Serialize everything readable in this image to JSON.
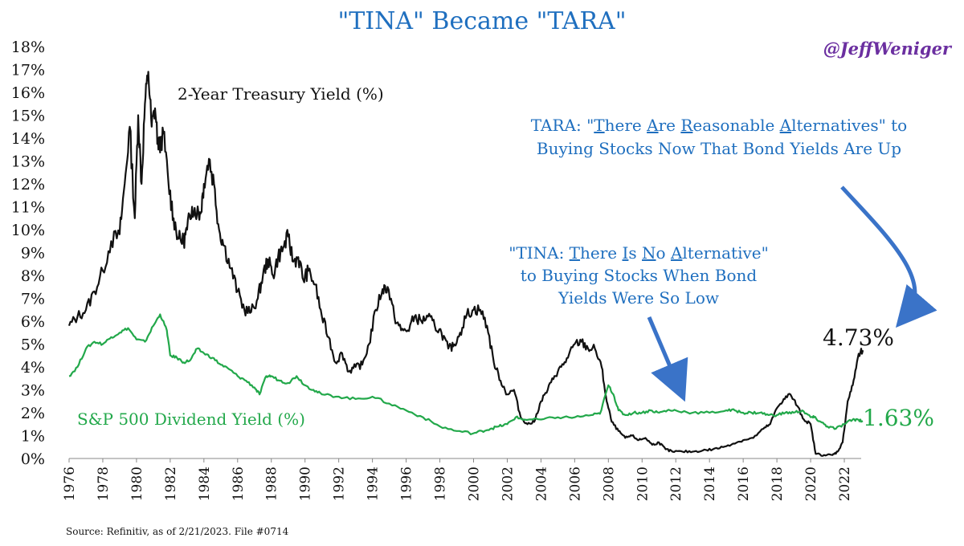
{
  "colors": {
    "treasury": "#111111",
    "dividend": "#22a84a",
    "title": "#1f6fbf",
    "handle": "#6b2fa0",
    "arrow": "#3a73c8",
    "axis": "#888888"
  },
  "title": "\"TINA\" Became \"TARA\"",
  "handle": "@JeffWeniger",
  "source": "Source: Refinitiv, as of 2/21/2023. File #0714",
  "annotations": {
    "tara_line1_parts": [
      {
        "t": "TARA: \"",
        "u": false
      },
      {
        "t": "T",
        "u": true
      },
      {
        "t": "here ",
        "u": false
      },
      {
        "t": "A",
        "u": true
      },
      {
        "t": "re ",
        "u": false
      },
      {
        "t": "R",
        "u": true
      },
      {
        "t": "easonable ",
        "u": false
      },
      {
        "t": "A",
        "u": true
      },
      {
        "t": "lternatives\" to",
        "u": false
      }
    ],
    "tara_line2": "Buying Stocks Now That Bond Yields Are Up",
    "tina_line1_parts": [
      {
        "t": "\"TINA: ",
        "u": false
      },
      {
        "t": "T",
        "u": true
      },
      {
        "t": "here ",
        "u": false
      },
      {
        "t": "I",
        "u": true
      },
      {
        "t": "s ",
        "u": false
      },
      {
        "t": "N",
        "u": true
      },
      {
        "t": "o ",
        "u": false
      },
      {
        "t": "A",
        "u": true
      },
      {
        "t": "lternative\"",
        "u": false
      }
    ],
    "tina_line2": "to Buying Stocks When Bond",
    "tina_line3": "Yields Were So Low",
    "treasury_last": "4.73%",
    "dividend_last": "1.63%"
  },
  "chart_data": {
    "type": "line",
    "title": "\"TINA\" Became \"TARA\"",
    "xlabel": "",
    "ylabel": "",
    "xlim": [
      1976,
      2023
    ],
    "ylim": [
      0,
      18
    ],
    "x_ticks": [
      "1976",
      "1978",
      "1980",
      "1982",
      "1984",
      "1986",
      "1988",
      "1990",
      "1992",
      "1994",
      "1996",
      "1998",
      "2000",
      "2002",
      "2004",
      "2006",
      "2008",
      "2010",
      "2012",
      "2014",
      "2016",
      "2018",
      "2020",
      "2022"
    ],
    "y_ticks": [
      "0%",
      "1%",
      "2%",
      "3%",
      "4%",
      "5%",
      "6%",
      "7%",
      "8%",
      "9%",
      "10%",
      "11%",
      "12%",
      "13%",
      "14%",
      "15%",
      "16%",
      "17%",
      "18%"
    ],
    "grid": false,
    "series": [
      {
        "name": "2-Year Treasury Yield (%)",
        "color": "#111111",
        "x": [
          1976.0,
          1976.5,
          1977.0,
          1977.5,
          1978.0,
          1978.5,
          1979.0,
          1979.3,
          1979.6,
          1979.9,
          1980.1,
          1980.3,
          1980.5,
          1980.7,
          1980.9,
          1981.1,
          1981.3,
          1981.6,
          1981.9,
          1982.2,
          1982.5,
          1982.8,
          1983.0,
          1983.3,
          1983.6,
          1983.8,
          1984.0,
          1984.3,
          1984.6,
          1984.9,
          1985.2,
          1985.6,
          1986.0,
          1986.4,
          1986.8,
          1987.2,
          1987.5,
          1987.8,
          1988.1,
          1988.4,
          1988.7,
          1989.0,
          1989.3,
          1989.6,
          1989.9,
          1990.2,
          1990.6,
          1991.0,
          1991.4,
          1991.8,
          1992.2,
          1992.6,
          1993.0,
          1993.4,
          1993.8,
          1994.2,
          1994.6,
          1994.9,
          1995.3,
          1995.7,
          1996.1,
          1996.5,
          1996.9,
          1997.3,
          1997.7,
          1998.1,
          1998.5,
          1998.8,
          1999.2,
          1999.6,
          2000.0,
          2000.4,
          2000.8,
          2001.2,
          2001.6,
          2002.0,
          2002.4,
          2002.8,
          2003.2,
          2003.6,
          2004.0,
          2004.4,
          2004.8,
          2005.2,
          2005.6,
          2006.0,
          2006.4,
          2006.8,
          2007.2,
          2007.6,
          2007.9,
          2008.2,
          2008.6,
          2009.0,
          2009.4,
          2009.8,
          2010.2,
          2010.6,
          2011.0,
          2011.4,
          2011.8,
          2012.4,
          2013.0,
          2013.6,
          2014.2,
          2014.8,
          2015.4,
          2016.0,
          2016.6,
          2017.2,
          2017.6,
          2018.0,
          2018.4,
          2018.8,
          2019.2,
          2019.6,
          2020.0,
          2020.3,
          2020.8,
          2021.3,
          2021.6,
          2021.9,
          2022.2,
          2022.5,
          2022.8,
          2023.1
        ],
        "y": [
          5.8,
          6.2,
          6.5,
          7.3,
          8.2,
          9.5,
          9.8,
          12.0,
          14.5,
          10.5,
          15.0,
          12.0,
          15.5,
          16.9,
          14.5,
          15.3,
          13.5,
          14.2,
          12.0,
          10.5,
          9.6,
          9.5,
          10.0,
          11.0,
          10.8,
          10.7,
          12.0,
          13.1,
          12.0,
          10.0,
          9.3,
          8.3,
          7.3,
          6.5,
          6.4,
          7.0,
          8.0,
          8.7,
          8.0,
          8.8,
          9.2,
          9.7,
          8.6,
          8.8,
          7.8,
          8.2,
          7.6,
          6.2,
          5.3,
          4.2,
          4.6,
          3.8,
          4.0,
          4.1,
          5.0,
          6.5,
          7.4,
          7.5,
          6.2,
          5.6,
          5.6,
          6.2,
          6.0,
          6.2,
          5.8,
          5.5,
          4.8,
          4.9,
          5.5,
          6.3,
          6.5,
          6.5,
          5.8,
          4.2,
          3.4,
          2.8,
          3.0,
          1.8,
          1.5,
          1.6,
          2.5,
          3.0,
          3.6,
          4.0,
          4.4,
          5.0,
          5.1,
          4.8,
          4.8,
          4.0,
          2.5,
          1.6,
          1.2,
          0.9,
          1.0,
          0.8,
          0.9,
          0.6,
          0.7,
          0.4,
          0.3,
          0.3,
          0.3,
          0.35,
          0.4,
          0.5,
          0.65,
          0.8,
          0.9,
          1.3,
          1.5,
          2.2,
          2.6,
          2.8,
          2.3,
          1.7,
          1.5,
          0.2,
          0.15,
          0.15,
          0.3,
          0.7,
          2.5,
          3.2,
          4.4,
          4.73
        ],
        "last_label": "4.73%"
      },
      {
        "name": "S&P 500 Dividend Yield (%)",
        "color": "#22a84a",
        "x": [
          1976.0,
          1976.5,
          1977.0,
          1977.5,
          1978.0,
          1978.5,
          1979.0,
          1979.5,
          1980.0,
          1980.5,
          1981.0,
          1981.4,
          1981.8,
          1982.0,
          1982.4,
          1982.8,
          1983.2,
          1983.6,
          1984.0,
          1984.5,
          1985.0,
          1985.5,
          1986.0,
          1986.5,
          1987.0,
          1987.3,
          1987.7,
          1988.0,
          1988.5,
          1989.0,
          1989.5,
          1990.0,
          1990.5,
          1991.0,
          1992.0,
          1993.0,
          1994.0,
          1995.0,
          1996.0,
          1997.0,
          1998.0,
          1999.0,
          2000.0,
          2000.5,
          2001.0,
          2001.5,
          2002.0,
          2002.5,
          2003.0,
          2004.0,
          2005.0,
          2006.0,
          2007.0,
          2007.5,
          2008.0,
          2008.3,
          2008.6,
          2009.0,
          2009.5,
          2010.0,
          2010.5,
          2011.0,
          2011.5,
          2012.0,
          2013.0,
          2014.0,
          2015.0,
          2015.5,
          2016.0,
          2016.5,
          2017.0,
          2017.5,
          2018.0,
          2018.5,
          2019.0,
          2019.5,
          2020.0,
          2020.2,
          2020.6,
          2021.0,
          2021.5,
          2022.0,
          2022.5,
          2022.8,
          2023.1
        ],
        "y": [
          3.6,
          4.0,
          4.8,
          5.1,
          5.0,
          5.3,
          5.5,
          5.7,
          5.2,
          5.1,
          5.8,
          6.3,
          5.6,
          4.5,
          4.4,
          4.2,
          4.3,
          4.8,
          4.6,
          4.4,
          4.1,
          3.9,
          3.6,
          3.4,
          3.1,
          2.8,
          3.6,
          3.6,
          3.4,
          3.3,
          3.6,
          3.2,
          3.0,
          2.8,
          2.7,
          2.6,
          2.7,
          2.4,
          2.1,
          1.8,
          1.4,
          1.2,
          1.1,
          1.2,
          1.3,
          1.4,
          1.5,
          1.8,
          1.7,
          1.7,
          1.8,
          1.8,
          1.9,
          1.95,
          3.2,
          2.8,
          2.1,
          1.9,
          2.0,
          2.0,
          2.1,
          2.0,
          2.1,
          2.1,
          2.0,
          2.0,
          2.1,
          2.1,
          2.0,
          2.0,
          2.0,
          1.9,
          1.9,
          2.0,
          2.0,
          2.1,
          1.8,
          1.8,
          1.6,
          1.4,
          1.3,
          1.5,
          1.7,
          1.7,
          1.63
        ],
        "last_label": "1.63%"
      }
    ]
  }
}
